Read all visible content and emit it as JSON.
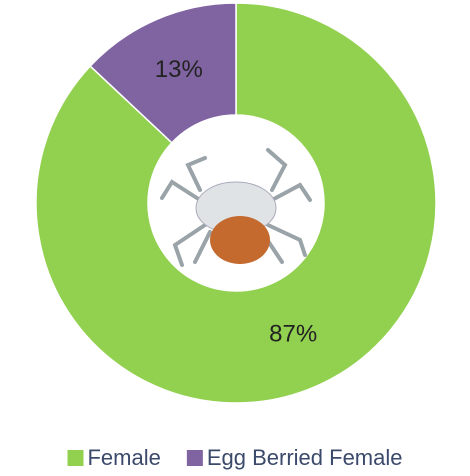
{
  "chart_data": {
    "type": "donut",
    "categories": [
      "Female",
      "Egg Berried Female"
    ],
    "values": [
      87,
      13
    ],
    "value_labels": [
      "87%",
      "13%"
    ],
    "colors": [
      "#92d050",
      "#8064a2"
    ],
    "legend": "bottom"
  }
}
